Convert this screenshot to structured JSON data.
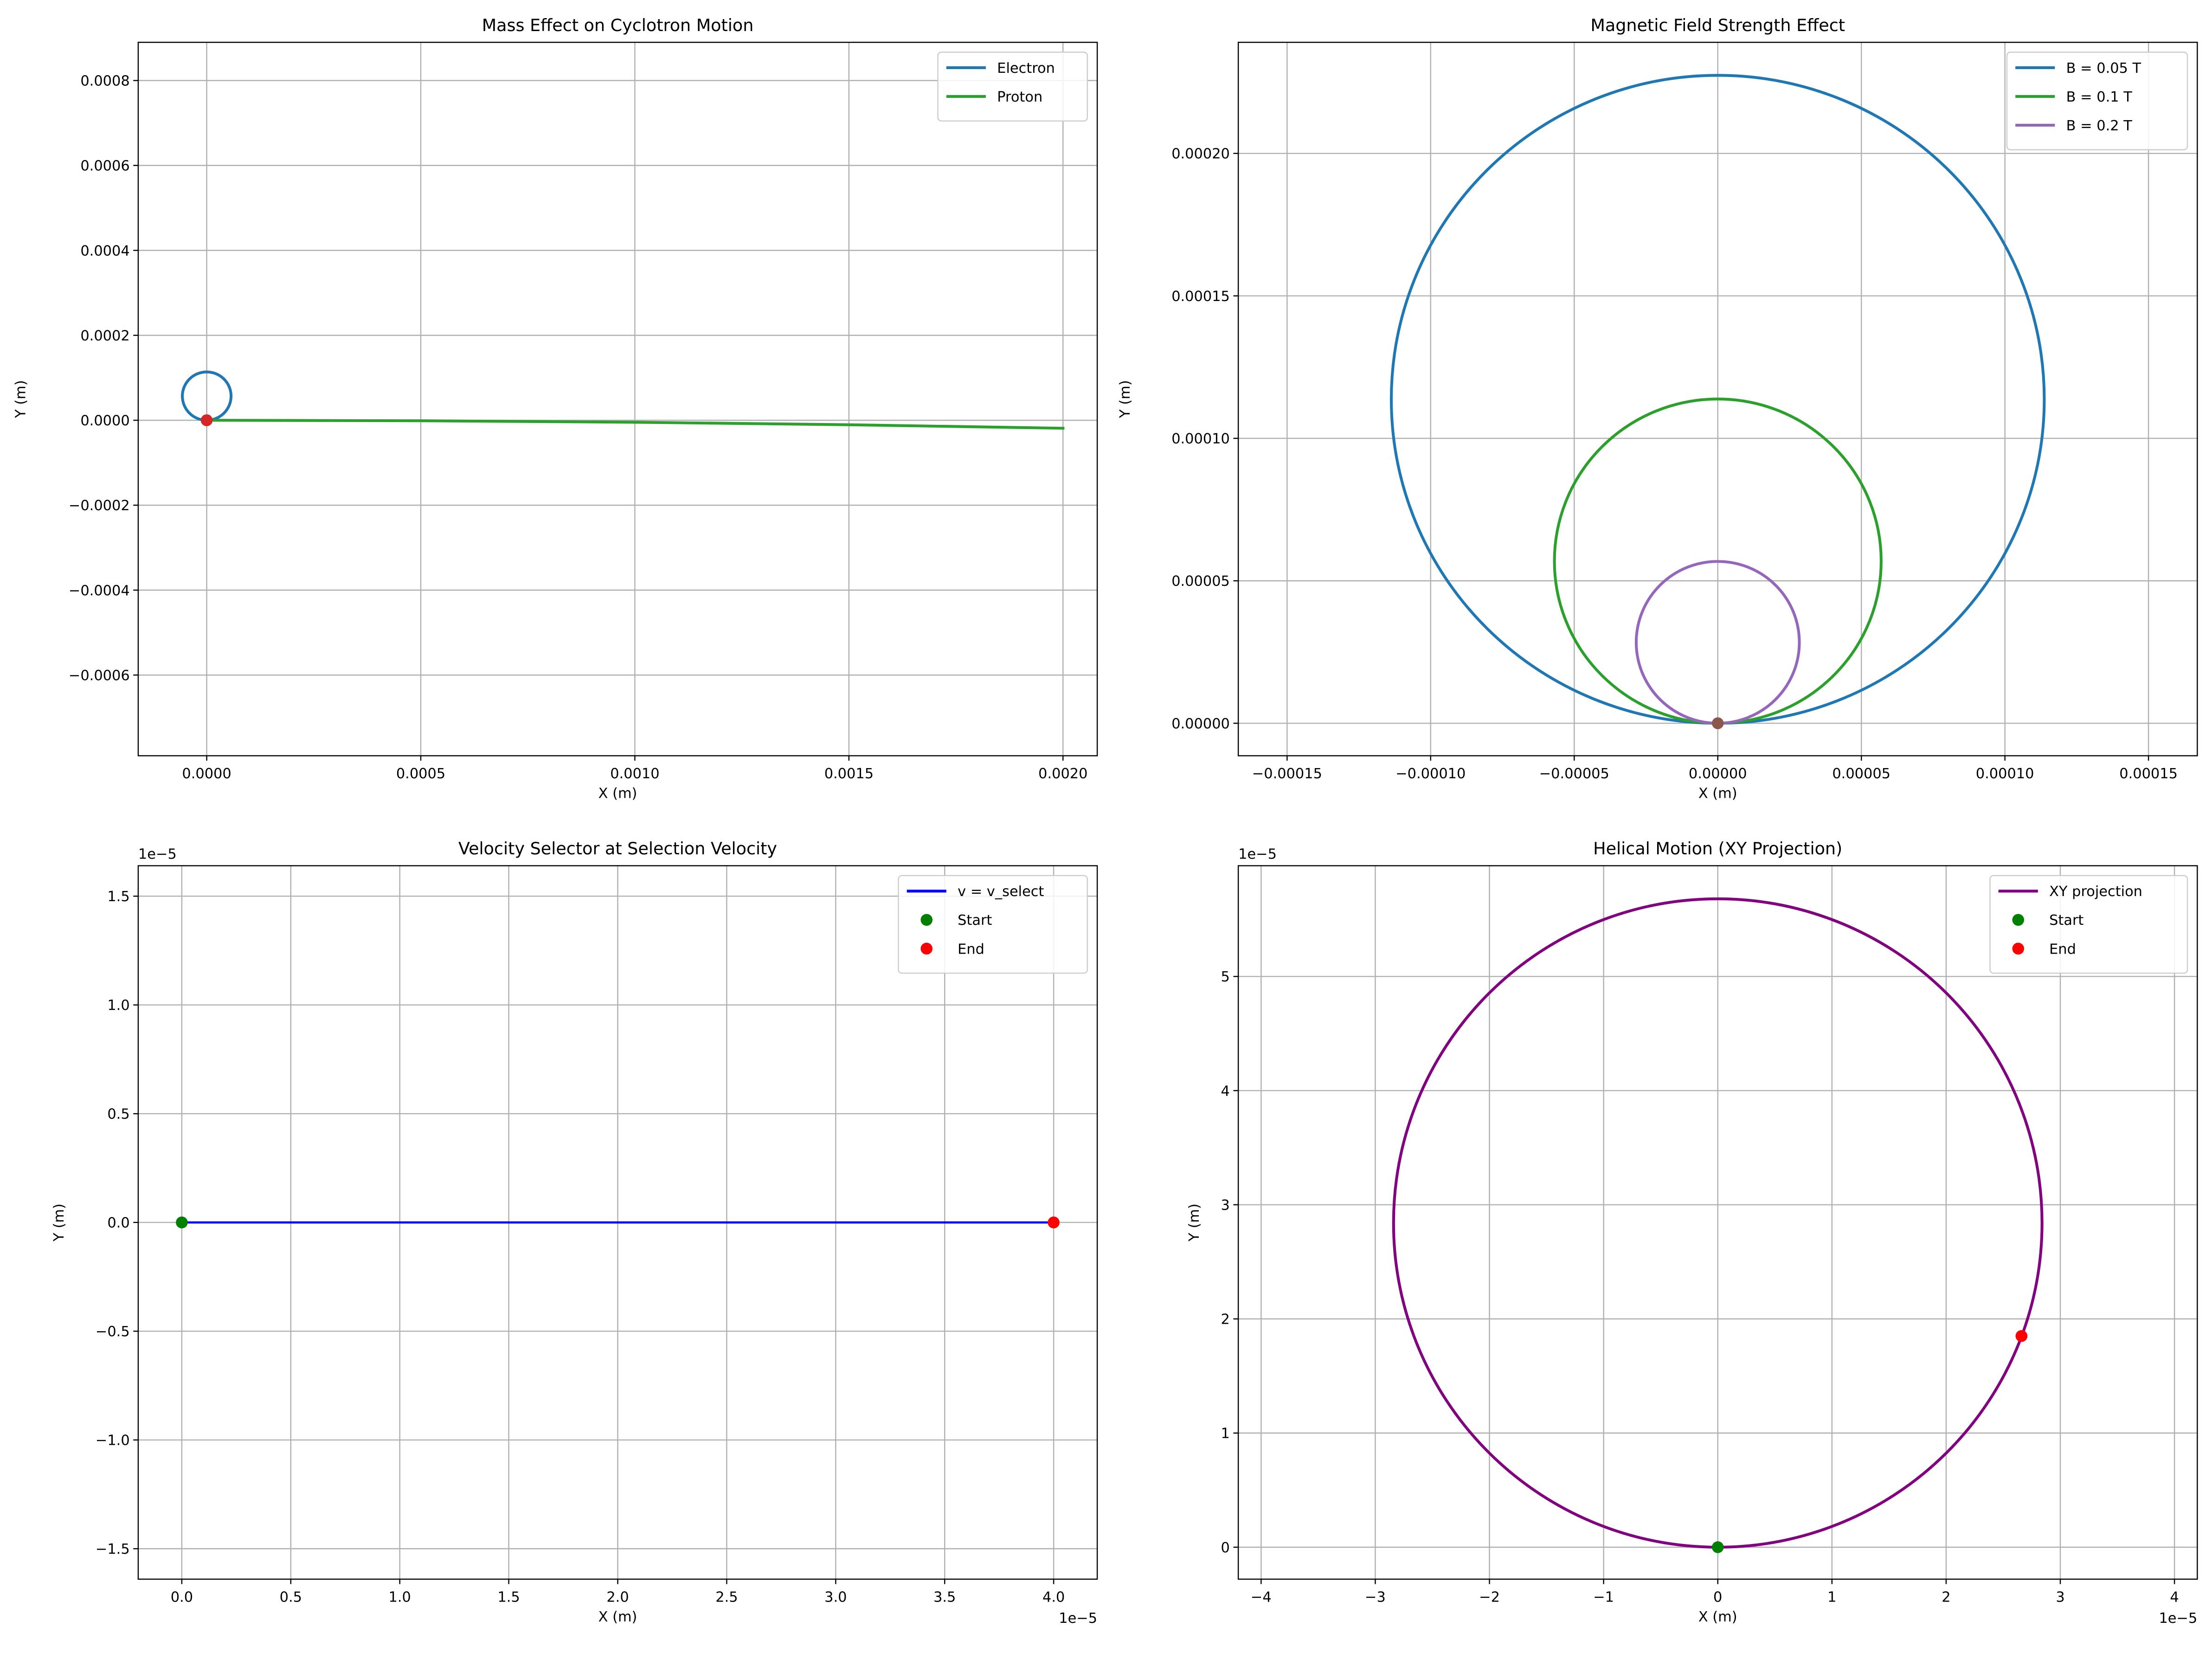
{
  "chart_data": [
    {
      "type": "line",
      "title": "Mass Effect on Cyclotron Motion",
      "xlabel": "X (m)",
      "ylabel": "Y (m)",
      "xlim": [
        -0.00016,
        0.00208
      ],
      "ylim": [
        -0.00079,
        0.00089
      ],
      "xticks": [
        0,
        0.0005,
        0.001,
        0.0015,
        0.002
      ],
      "xtick_labels": [
        "0.0000",
        "0.0005",
        "0.0010",
        "0.0015",
        "0.0020"
      ],
      "yticks": [
        -0.0006,
        -0.0004,
        -0.0002,
        0,
        0.0002,
        0.0004,
        0.0006,
        0.0008
      ],
      "ytick_labels": [
        "−0.0006",
        "−0.0004",
        "−0.0002",
        "0.0000",
        "0.0002",
        "0.0004",
        "0.0006",
        "0.0008"
      ],
      "x_exponent": "",
      "y_exponent": "",
      "grid": true,
      "legend_position": "upper-right",
      "series": [
        {
          "name": "Electron",
          "kind": "circle",
          "color": "#1f77b4",
          "width": 2.0,
          "center": [
            0,
            5.69e-05
          ],
          "radius": 5.69e-05
        },
        {
          "name": "Proton",
          "kind": "polyline",
          "color": "#2ca02c",
          "width": 2.0,
          "x": [
            0,
            0.0005,
            0.001,
            0.0015,
            0.002
          ],
          "y": [
            0,
            -1.2e-06,
            -4.7e-06,
            -1.06e-05,
            -1.88e-05
          ]
        }
      ],
      "markers": [
        {
          "name": "",
          "x": 0,
          "y": 0,
          "color": "#2ca02c"
        },
        {
          "name": "",
          "x": 0,
          "y": 0,
          "color": "#d62728"
        }
      ]
    },
    {
      "type": "line",
      "title": "Magnetic Field Strength Effect",
      "xlabel": "X (m)",
      "ylabel": "Y (m)",
      "xlim": [
        -0.000167,
        0.000167
      ],
      "ylim": [
        -1.14e-05,
        0.000239
      ],
      "xticks": [
        -0.00015,
        -0.0001,
        -5e-05,
        0,
        5e-05,
        0.0001,
        0.00015
      ],
      "xtick_labels": [
        "−0.00015",
        "−0.00010",
        "−0.00005",
        "0.00000",
        "0.00005",
        "0.00010",
        "0.00015"
      ],
      "yticks": [
        0,
        5e-05,
        0.0001,
        0.00015,
        0.0002
      ],
      "ytick_labels": [
        "0.00000",
        "0.00005",
        "0.00010",
        "0.00015",
        "0.00020"
      ],
      "x_exponent": "",
      "y_exponent": "",
      "grid": true,
      "legend_position": "upper-right",
      "series": [
        {
          "name": "B = 0.05 T",
          "kind": "circle",
          "color": "#1f77b4",
          "width": 2.0,
          "center": [
            0,
            0.0001137
          ],
          "radius": 0.0001137
        },
        {
          "name": "B = 0.1 T",
          "kind": "circle",
          "color": "#2ca02c",
          "width": 2.0,
          "center": [
            0,
            5.69e-05
          ],
          "radius": 5.69e-05
        },
        {
          "name": "B = 0.2 T",
          "kind": "circle",
          "color": "#9467bd",
          "width": 2.0,
          "center": [
            0,
            2.84e-05
          ],
          "radius": 2.84e-05
        }
      ],
      "markers": [
        {
          "name": "",
          "x": 0,
          "y": 0,
          "color": "#8c564b"
        }
      ]
    },
    {
      "type": "line",
      "title": "Velocity Selector at Selection Velocity",
      "xlabel": "X (m)",
      "ylabel": "Y (m)",
      "xlim": [
        -0.2,
        4.2
      ],
      "ylim": [
        -1.64,
        1.64
      ],
      "xticks": [
        0,
        0.5,
        1.0,
        1.5,
        2.0,
        2.5,
        3.0,
        3.5,
        4.0
      ],
      "xtick_labels": [
        "0.0",
        "0.5",
        "1.0",
        "1.5",
        "2.0",
        "2.5",
        "3.0",
        "3.5",
        "4.0"
      ],
      "yticks": [
        -1.5,
        -1.0,
        -0.5,
        0,
        0.5,
        1.0,
        1.5
      ],
      "ytick_labels": [
        "−1.5",
        "−1.0",
        "−0.5",
        "0.0",
        "0.5",
        "1.0",
        "1.5"
      ],
      "x_exponent": "1e−5",
      "y_exponent": "1e−5",
      "grid": true,
      "legend_position": "upper-right",
      "series": [
        {
          "name": "v = v_select",
          "kind": "polyline",
          "color": "#0000ff",
          "width": 1.5,
          "x": [
            0,
            4.0
          ],
          "y": [
            0,
            0
          ]
        }
      ],
      "markers": [
        {
          "name": "Start",
          "x": 0,
          "y": 0,
          "color": "#008000"
        },
        {
          "name": "End",
          "x": 4.0,
          "y": 0,
          "color": "#ff0000"
        }
      ]
    },
    {
      "type": "line",
      "title": "Helical Motion (XY Projection)",
      "xlabel": "X (m)",
      "ylabel": "Y (m)",
      "xlim": [
        -4.2,
        4.2
      ],
      "ylim": [
        -0.28,
        5.97
      ],
      "xticks": [
        -4,
        -3,
        -2,
        -1,
        0,
        1,
        2,
        3,
        4
      ],
      "xtick_labels": [
        "−4",
        "−3",
        "−2",
        "−1",
        "0",
        "1",
        "2",
        "3",
        "4"
      ],
      "yticks": [
        0,
        1,
        2,
        3,
        4,
        5
      ],
      "ytick_labels": [
        "0",
        "1",
        "2",
        "3",
        "4",
        "5"
      ],
      "x_exponent": "1e−5",
      "y_exponent": "1e−5",
      "grid": true,
      "legend_position": "upper-right",
      "series": [
        {
          "name": "XY projection",
          "kind": "circle",
          "color": "#800080",
          "width": 2.0,
          "center": [
            0,
            2.84
          ],
          "radius": 2.84
        }
      ],
      "markers": [
        {
          "name": "Start",
          "x": 0,
          "y": 0,
          "color": "#008000"
        },
        {
          "name": "End",
          "x": 2.66,
          "y": 1.85,
          "color": "#ff0000"
        }
      ]
    }
  ]
}
